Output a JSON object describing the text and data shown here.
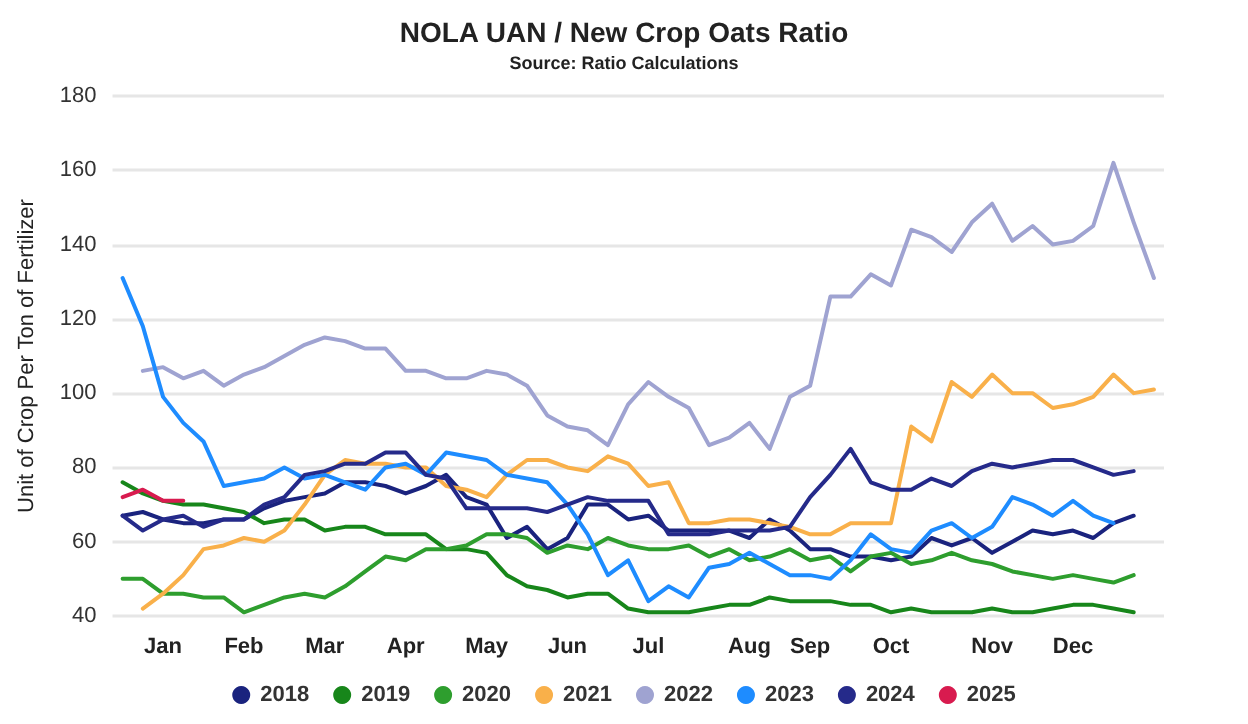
{
  "chart_data": {
    "type": "line",
    "title": "NOLA UAN / New Crop Oats Ratio",
    "subtitle": "Source: Ratio Calculations",
    "ylabel": "Unit of Crop Per Ton of Fertilizer",
    "categories": [
      null,
      null,
      "Jan",
      null,
      null,
      null,
      "Feb",
      null,
      null,
      null,
      "Mar",
      null,
      null,
      null,
      "Apr",
      null,
      null,
      null,
      "May",
      null,
      null,
      null,
      "Jun",
      null,
      null,
      null,
      "Jul",
      null,
      null,
      null,
      null,
      "Aug",
      null,
      null,
      "Sep",
      null,
      null,
      null,
      "Oct",
      null,
      null,
      null,
      null,
      "Nov",
      null,
      null,
      null,
      "Dec",
      null,
      null,
      null,
      null
    ],
    "ylim": [
      40,
      180
    ],
    "yticks": [
      40,
      60,
      80,
      100,
      120,
      140,
      160,
      180
    ],
    "grid": "y",
    "legend": "bottom",
    "series": [
      {
        "name": "2018",
        "color": "#1a237e",
        "values": [
          67,
          68,
          66,
          65,
          65,
          66,
          66,
          69,
          71,
          72,
          73,
          76,
          76,
          75,
          73,
          75,
          78,
          72,
          70,
          61,
          64,
          58,
          61,
          70,
          70,
          66,
          67,
          63,
          63,
          63,
          63,
          61,
          66,
          63,
          58,
          58,
          56,
          56,
          55,
          56,
          61,
          59,
          61,
          57,
          60,
          63,
          62,
          63,
          61,
          65,
          67,
          null
        ]
      },
      {
        "name": "2019",
        "color": "#17861a",
        "values": [
          76,
          73,
          71,
          70,
          70,
          69,
          68,
          65,
          66,
          66,
          63,
          64,
          64,
          62,
          62,
          62,
          58,
          58,
          57,
          51,
          48,
          47,
          45,
          46,
          46,
          42,
          41,
          41,
          41,
          42,
          43,
          43,
          45,
          44,
          44,
          44,
          43,
          43,
          41,
          42,
          41,
          41,
          41,
          42,
          41,
          41,
          42,
          43,
          43,
          42,
          41,
          null
        ]
      },
      {
        "name": "2020",
        "color": "#2e9e2e",
        "values": [
          50,
          50,
          46,
          46,
          45,
          45,
          41,
          43,
          45,
          46,
          45,
          48,
          52,
          56,
          55,
          58,
          58,
          59,
          62,
          62,
          61,
          57,
          59,
          58,
          61,
          59,
          58,
          58,
          59,
          56,
          58,
          55,
          56,
          58,
          55,
          56,
          52,
          56,
          57,
          54,
          55,
          57,
          55,
          54,
          52,
          51,
          50,
          51,
          50,
          49,
          51,
          null
        ]
      },
      {
        "name": "2021",
        "color": "#f9b04a",
        "values": [
          null,
          42,
          46,
          51,
          58,
          59,
          61,
          60,
          63,
          70,
          78,
          82,
          81,
          81,
          80,
          80,
          75,
          74,
          72,
          78,
          82,
          82,
          80,
          79,
          83,
          81,
          75,
          76,
          65,
          65,
          66,
          66,
          65,
          64,
          62,
          62,
          65,
          65,
          65,
          91,
          87,
          103,
          99,
          105,
          100,
          100,
          96,
          97,
          99,
          105,
          100,
          101
        ]
      },
      {
        "name": "2022",
        "color": "#9fa3d1",
        "values": [
          null,
          106,
          107,
          104,
          106,
          102,
          105,
          107,
          110,
          113,
          115,
          114,
          112,
          112,
          106,
          106,
          104,
          104,
          106,
          105,
          102,
          94,
          91,
          90,
          86,
          97,
          103,
          99,
          96,
          86,
          88,
          92,
          85,
          99,
          102,
          126,
          126,
          132,
          129,
          144,
          142,
          138,
          146,
          151,
          141,
          145,
          140,
          141,
          145,
          162,
          146,
          131
        ]
      },
      {
        "name": "2023",
        "color": "#1e8cff",
        "values": [
          131,
          118,
          99,
          92,
          87,
          75,
          76,
          77,
          80,
          77,
          78,
          76,
          74,
          80,
          81,
          78,
          84,
          83,
          82,
          78,
          77,
          76,
          70,
          62,
          51,
          55,
          44,
          48,
          45,
          53,
          54,
          57,
          54,
          51,
          51,
          50,
          55,
          62,
          58,
          57,
          63,
          65,
          61,
          64,
          72,
          70,
          67,
          71,
          67,
          65,
          null,
          null
        ]
      },
      {
        "name": "2024",
        "color": "#252a8a",
        "values": [
          67,
          63,
          66,
          67,
          64,
          66,
          66,
          70,
          72,
          78,
          79,
          81,
          81,
          84,
          84,
          78,
          77,
          69,
          69,
          69,
          69,
          68,
          70,
          72,
          71,
          71,
          71,
          62,
          62,
          62,
          63,
          63,
          63,
          64,
          72,
          78,
          85,
          76,
          74,
          74,
          77,
          75,
          79,
          81,
          80,
          81,
          82,
          82,
          80,
          78,
          79,
          null
        ]
      },
      {
        "name": "2025",
        "color": "#d81b4f",
        "values": [
          72,
          74,
          71,
          71,
          null,
          null,
          null,
          null,
          null,
          null,
          null,
          null,
          null,
          null,
          null,
          null,
          null,
          null,
          null,
          null,
          null,
          null,
          null,
          null,
          null,
          null,
          null,
          null,
          null,
          null,
          null,
          null,
          null,
          null,
          null,
          null,
          null,
          null,
          null,
          null,
          null,
          null,
          null,
          null,
          null,
          null,
          null,
          null,
          null,
          null,
          null,
          null
        ]
      }
    ]
  }
}
